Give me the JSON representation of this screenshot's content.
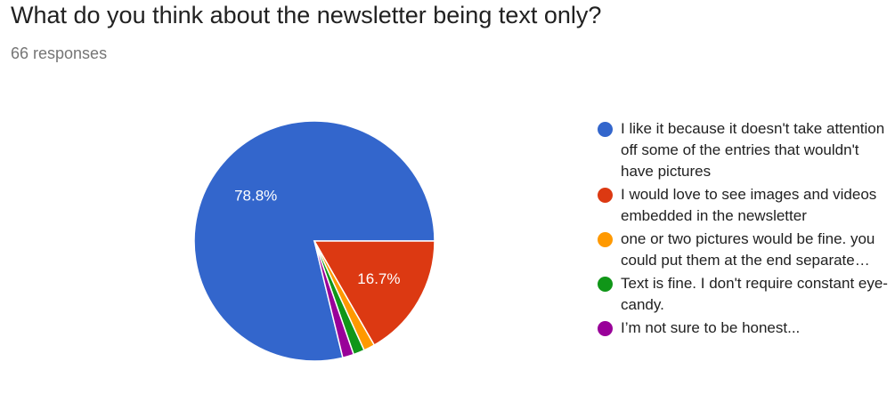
{
  "header": {
    "question": "What do you think about the newsletter being text only?",
    "responses": "66 responses"
  },
  "chart_data": {
    "type": "pie",
    "title": "What do you think about the newsletter being text only?",
    "total_responses": 66,
    "slices": [
      {
        "label": "I like it because it doesn't take attention off some of the entries that wouldn't have pictures",
        "percent": 78.8,
        "color": "#3366cc",
        "data_label": "78.8%"
      },
      {
        "label": "I would love to see images and videos embedded in the newsletter",
        "percent": 16.7,
        "color": "#dc3912",
        "data_label": "16.7%"
      },
      {
        "label": "one or two pictures would be fine. you could put them at the end separate…",
        "percent": 1.5,
        "color": "#ff9900",
        "data_label": ""
      },
      {
        "label": "Text is fine. I don't require constant eye-candy.",
        "percent": 1.5,
        "color": "#109618",
        "data_label": ""
      },
      {
        "label": "I’m not sure to be honest...",
        "percent": 1.5,
        "color": "#990099",
        "data_label": ""
      }
    ],
    "legend_position": "right"
  }
}
